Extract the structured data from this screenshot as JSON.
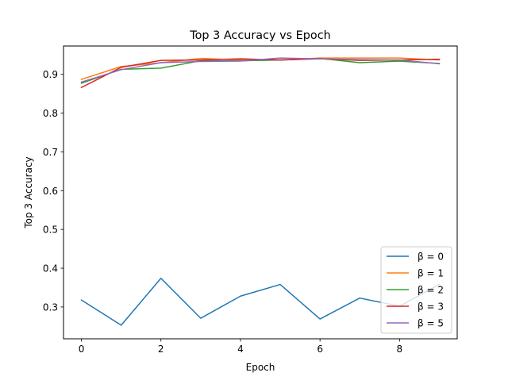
{
  "chart_data": {
    "type": "line",
    "title": "Top 3 Accuracy vs Epoch",
    "xlabel": "Epoch",
    "ylabel": "Top 3 Accuracy",
    "x": [
      0,
      1,
      2,
      3,
      4,
      5,
      6,
      7,
      8,
      9
    ],
    "xlim": [
      -0.45,
      9.45
    ],
    "ylim": [
      0.218,
      0.973
    ],
    "xticks": [
      0,
      2,
      4,
      6,
      8
    ],
    "yticks": [
      0.3,
      0.4,
      0.5,
      0.6,
      0.7,
      0.8,
      0.9
    ],
    "xtick_labels": [
      "0",
      "2",
      "4",
      "6",
      "8"
    ],
    "ytick_labels": [
      "0.3",
      "0.4",
      "0.5",
      "0.6",
      "0.7",
      "0.8",
      "0.9"
    ],
    "grid": false,
    "legend_position": "lower-right",
    "series": [
      {
        "name": "β = 0",
        "color": "#1f77b4",
        "values": [
          0.318,
          0.253,
          0.374,
          0.271,
          0.328,
          0.358,
          0.269,
          0.323,
          0.302,
          0.358
        ]
      },
      {
        "name": "β = 1",
        "color": "#ff7f0e",
        "values": [
          0.887,
          0.92,
          0.93,
          0.941,
          0.937,
          0.937,
          0.942,
          0.942,
          0.942,
          0.937
        ]
      },
      {
        "name": "β = 2",
        "color": "#2ca02c",
        "values": [
          0.877,
          0.913,
          0.916,
          0.935,
          0.935,
          0.937,
          0.941,
          0.93,
          0.934,
          0.928
        ]
      },
      {
        "name": "β = 3",
        "color": "#d62728",
        "values": [
          0.866,
          0.918,
          0.936,
          0.937,
          0.94,
          0.937,
          0.94,
          0.936,
          0.937,
          0.939
        ]
      },
      {
        "name": "β = 5",
        "color": "#9467bd",
        "values": [
          0.88,
          0.912,
          0.93,
          0.933,
          0.934,
          0.942,
          0.94,
          0.938,
          0.937,
          0.927
        ]
      }
    ]
  }
}
